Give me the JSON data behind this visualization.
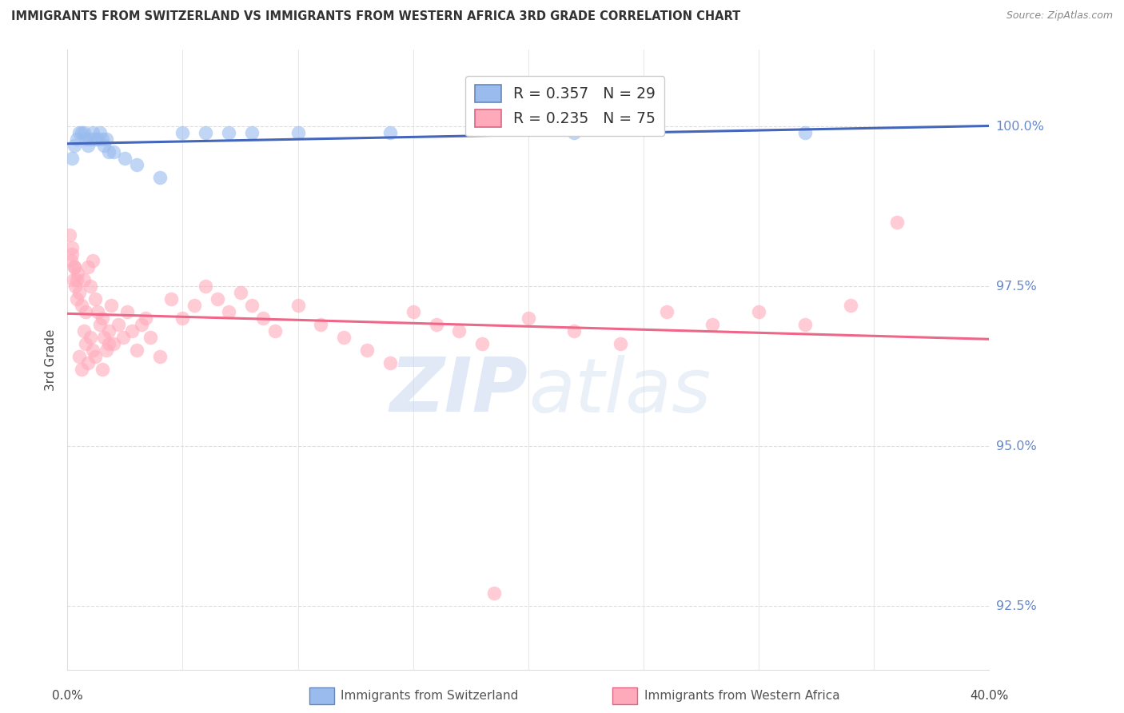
{
  "title": "IMMIGRANTS FROM SWITZERLAND VS IMMIGRANTS FROM WESTERN AFRICA 3RD GRADE CORRELATION CHART",
  "source": "Source: ZipAtlas.com",
  "ylabel": "3rd Grade",
  "xlim": [
    0.0,
    40.0
  ],
  "ylim": [
    91.5,
    101.2
  ],
  "yticks": [
    92.5,
    95.0,
    97.5,
    100.0
  ],
  "ytick_labels": [
    "92.5%",
    "95.0%",
    "97.5%",
    "100.0%"
  ],
  "legend_blue_R": "R = 0.357",
  "legend_blue_N": "N = 29",
  "legend_pink_R": "R = 0.235",
  "legend_pink_N": "N = 75",
  "blue_scatter_color": "#99BBEE",
  "pink_scatter_color": "#FFAABB",
  "blue_line_color": "#4466BB",
  "pink_line_color": "#EE6688",
  "watermark_color": "#C8D8EE",
  "right_axis_color": "#6688CC",
  "blue_scatter_x": [
    0.2,
    0.3,
    0.4,
    0.5,
    0.6,
    0.7,
    0.8,
    0.9,
    1.0,
    1.1,
    1.2,
    1.3,
    1.4,
    1.5,
    1.6,
    1.7,
    1.8,
    2.0,
    2.5,
    3.0,
    4.0,
    5.0,
    6.0,
    7.0,
    8.0,
    10.0,
    14.0,
    22.0,
    32.0
  ],
  "blue_scatter_y": [
    99.5,
    99.7,
    99.8,
    99.9,
    99.9,
    99.9,
    99.8,
    99.7,
    99.8,
    99.9,
    99.8,
    99.8,
    99.9,
    99.8,
    99.7,
    99.8,
    99.6,
    99.6,
    99.5,
    99.4,
    99.2,
    99.9,
    99.9,
    99.9,
    99.9,
    99.9,
    99.9,
    99.9,
    99.9
  ],
  "pink_scatter_x": [
    0.1,
    0.15,
    0.2,
    0.25,
    0.3,
    0.35,
    0.4,
    0.45,
    0.5,
    0.6,
    0.7,
    0.8,
    0.9,
    1.0,
    1.1,
    1.2,
    1.3,
    1.4,
    1.5,
    1.6,
    1.7,
    1.8,
    1.9,
    2.0,
    2.2,
    2.4,
    2.6,
    2.8,
    3.0,
    3.2,
    3.4,
    3.6,
    4.0,
    4.5,
    5.0,
    5.5,
    6.0,
    6.5,
    7.0,
    7.5,
    8.0,
    8.5,
    9.0,
    10.0,
    11.0,
    12.0,
    13.0,
    14.0,
    15.0,
    16.0,
    17.0,
    18.0,
    20.0,
    22.0,
    24.0,
    26.0,
    28.0,
    30.0,
    32.0,
    34.0,
    36.0,
    0.2,
    0.3,
    0.4,
    0.5,
    0.6,
    0.7,
    0.8,
    0.9,
    1.0,
    1.1,
    1.2,
    1.5,
    1.8,
    18.5
  ],
  "pink_scatter_y": [
    98.3,
    97.9,
    98.1,
    97.6,
    97.8,
    97.5,
    97.3,
    97.7,
    97.4,
    97.2,
    97.6,
    97.1,
    97.8,
    97.5,
    97.9,
    97.3,
    97.1,
    96.9,
    97.0,
    96.7,
    96.5,
    96.8,
    97.2,
    96.6,
    96.9,
    96.7,
    97.1,
    96.8,
    96.5,
    96.9,
    97.0,
    96.7,
    96.4,
    97.3,
    97.0,
    97.2,
    97.5,
    97.3,
    97.1,
    97.4,
    97.2,
    97.0,
    96.8,
    97.2,
    96.9,
    96.7,
    96.5,
    96.3,
    97.1,
    96.9,
    96.8,
    96.6,
    97.0,
    96.8,
    96.6,
    97.1,
    96.9,
    97.1,
    96.9,
    97.2,
    98.5,
    98.0,
    97.8,
    97.6,
    96.4,
    96.2,
    96.8,
    96.6,
    96.3,
    96.7,
    96.5,
    96.4,
    96.2,
    96.6,
    92.7
  ]
}
